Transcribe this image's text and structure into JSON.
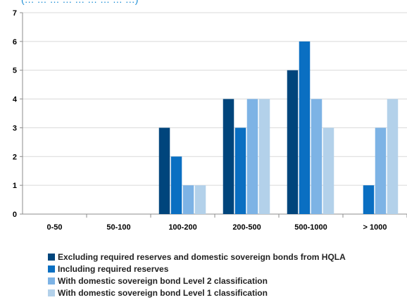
{
  "header_fragment": "(… … … … … … … … …)",
  "chart_data": {
    "type": "bar",
    "categories": [
      "0-50",
      "50-100",
      "100-200",
      "200-500",
      "500-1000",
      "> 1000"
    ],
    "series": [
      {
        "name": "Excluding required reserves and domestic sovereign bonds from HQLA",
        "color": "#00457c",
        "values": [
          0,
          0,
          3,
          4,
          5,
          0
        ]
      },
      {
        "name": "Including required reserves",
        "color": "#0a6fc2",
        "values": [
          0,
          0,
          2,
          3,
          6,
          1
        ]
      },
      {
        "name": "With domestic sovereign bond Level 2 classification",
        "color": "#7db3e5",
        "values": [
          0,
          0,
          1,
          4,
          4,
          3
        ]
      },
      {
        "name": "With domestic sovereign bond Level 1 classification",
        "color": "#b3d1ea",
        "values": [
          0,
          0,
          1,
          4,
          3,
          4
        ]
      }
    ],
    "ylim": [
      0,
      7
    ],
    "yticks": [
      "0",
      "1",
      "2",
      "3",
      "4",
      "5",
      "6",
      "7"
    ],
    "grid": "horizontal",
    "legend_position": "bottom"
  }
}
